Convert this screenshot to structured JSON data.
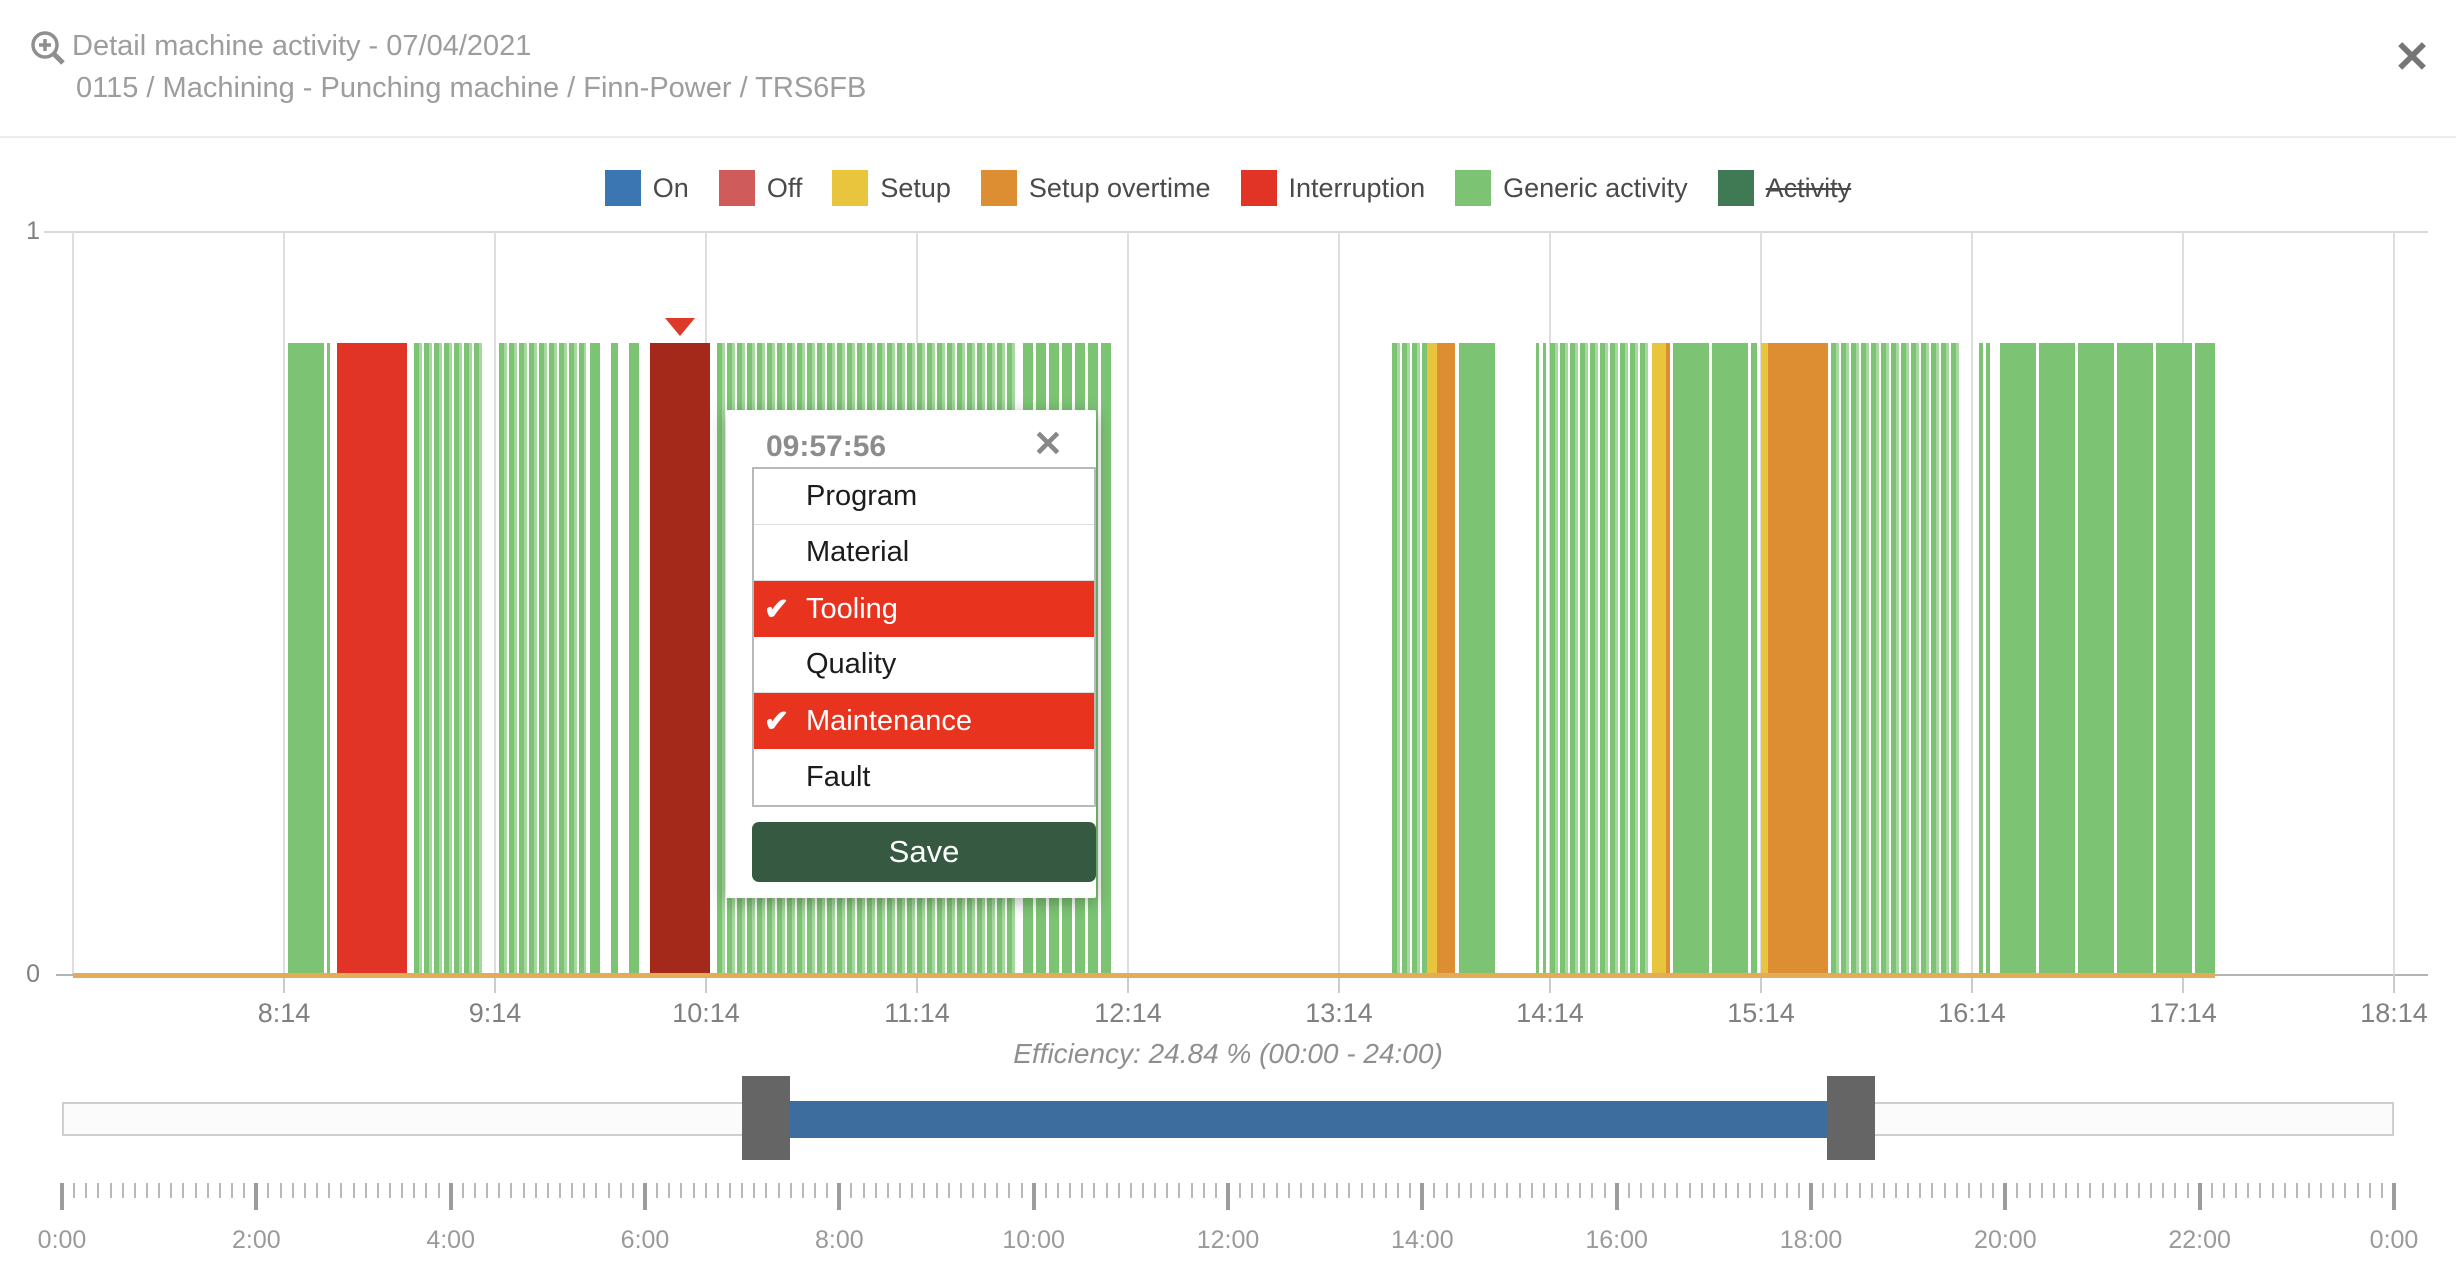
{
  "header": {
    "title": "Detail machine activity - 07/04/2021",
    "subtitle": "0115 / Machining - Punching machine / Finn-Power / TRS6FB",
    "close_glyph": "✕"
  },
  "legend": [
    {
      "label": "On",
      "color": "#3b76b3",
      "struck": false
    },
    {
      "label": "Off",
      "color": "#cf5b5b",
      "struck": false
    },
    {
      "label": "Setup",
      "color": "#e9c43d",
      "struck": false
    },
    {
      "label": "Setup overtime",
      "color": "#dd8e32",
      "struck": false
    },
    {
      "label": "Interruption",
      "color": "#e23426",
      "struck": false
    },
    {
      "label": "Generic activity",
      "color": "#7cc474",
      "struck": false
    },
    {
      "label": "Activity",
      "color": "#3f7a55",
      "struck": true
    }
  ],
  "chart_data": {
    "type": "bar",
    "title": "Machine activity timeline 07/04/2021",
    "x_axis": {
      "start": "07:14",
      "end": "18:14",
      "tick_labels": [
        "8:14",
        "9:14",
        "10:14",
        "11:14",
        "12:14",
        "13:14",
        "14:14",
        "15:14",
        "16:14",
        "17:14",
        "18:14"
      ]
    },
    "y_axis": {
      "tick_labels": [
        "1",
        "0"
      ],
      "range": [
        0,
        1
      ]
    },
    "bar_value": 0.86,
    "segments": [
      {
        "start": "08:15",
        "end": "08:27",
        "series": "generic",
        "texture": "wide"
      },
      {
        "start": "08:29",
        "end": "08:49",
        "series": "interruption",
        "texture": "solid"
      },
      {
        "start": "08:51",
        "end": "09:11",
        "series": "generic",
        "texture": "fine"
      },
      {
        "start": "09:15",
        "end": "09:40",
        "series": "generic",
        "texture": "fine"
      },
      {
        "start": "09:41",
        "end": "09:44",
        "series": "generic",
        "texture": "solid"
      },
      {
        "start": "09:47",
        "end": "09:49",
        "series": "generic",
        "texture": "solid"
      },
      {
        "start": "09:52",
        "end": "09:55",
        "series": "generic",
        "texture": "solid"
      },
      {
        "start": "09:58",
        "end": "10:15",
        "series": "interruption_selected",
        "texture": "solid",
        "selected": true
      },
      {
        "start": "10:17",
        "end": "11:42",
        "series": "generic",
        "texture": "fine"
      },
      {
        "start": "11:44",
        "end": "12:10",
        "series": "generic",
        "texture": "medium"
      },
      {
        "start": "13:29",
        "end": "13:39",
        "series": "generic",
        "texture": "fine"
      },
      {
        "start": "13:39",
        "end": "13:42",
        "series": "setup",
        "texture": "solid"
      },
      {
        "start": "13:42",
        "end": "13:47",
        "series": "setup_overtime",
        "texture": "solid"
      },
      {
        "start": "13:48",
        "end": "13:59",
        "series": "generic",
        "texture": "wide"
      },
      {
        "start": "14:10",
        "end": "14:11",
        "series": "generic",
        "texture": "solid"
      },
      {
        "start": "14:12",
        "end": "14:13",
        "series": "generic",
        "texture": "solid"
      },
      {
        "start": "14:14",
        "end": "14:42",
        "series": "generic",
        "texture": "fine"
      },
      {
        "start": "14:43",
        "end": "14:47",
        "series": "setup",
        "texture": "solid"
      },
      {
        "start": "14:47",
        "end": "14:48",
        "series": "setup_overtime",
        "texture": "solid"
      },
      {
        "start": "14:49",
        "end": "15:13",
        "series": "generic",
        "texture": "wide"
      },
      {
        "start": "15:14",
        "end": "15:16",
        "series": "setup",
        "texture": "solid"
      },
      {
        "start": "15:16",
        "end": "15:33",
        "series": "setup_overtime",
        "texture": "solid"
      },
      {
        "start": "15:34",
        "end": "16:11",
        "series": "generic",
        "texture": "fine"
      },
      {
        "start": "16:16",
        "end": "16:17",
        "series": "generic",
        "texture": "solid"
      },
      {
        "start": "16:18",
        "end": "16:19",
        "series": "generic",
        "texture": "solid"
      },
      {
        "start": "16:22",
        "end": "17:23",
        "series": "generic",
        "texture": "wide"
      }
    ],
    "setup_baseline": {
      "start": "07:14",
      "end": "17:23"
    },
    "efficiency_note": "Efficiency: 24.84 % (00:00 - 24:00)"
  },
  "popup": {
    "time": "09:57:56",
    "close_glyph": "✕",
    "check_glyph": "✔",
    "options": [
      {
        "label": "Program",
        "selected": false
      },
      {
        "label": "Material",
        "selected": false
      },
      {
        "label": "Tooling",
        "selected": true
      },
      {
        "label": "Quality",
        "selected": false
      },
      {
        "label": "Maintenance",
        "selected": true
      },
      {
        "label": "Fault",
        "selected": false
      }
    ],
    "save_label": "Save"
  },
  "slider": {
    "range_start": "00:00",
    "range_end": "24:00",
    "window_start": "07:15",
    "window_end": "18:25"
  },
  "ruler": {
    "labels": [
      "0:00",
      "2:00",
      "4:00",
      "6:00",
      "8:00",
      "10:00",
      "12:00",
      "14:00",
      "16:00",
      "18:00",
      "20:00",
      "22:00",
      "0:00"
    ]
  },
  "colors": {
    "generic": "#7cc474",
    "generic_light": "#a6d8a0",
    "interruption": "#e23426",
    "interruption_selected": "#a5291b",
    "setup": "#e9c43d",
    "setup_overtime": "#dd8e32",
    "setup_baseline": "#e2ac58",
    "marker": "#dd3a2a",
    "selected_row": "#e8331f",
    "save_button": "#355a41",
    "slider_range": "#3d6c9e",
    "slider_handle": "#656565"
  }
}
